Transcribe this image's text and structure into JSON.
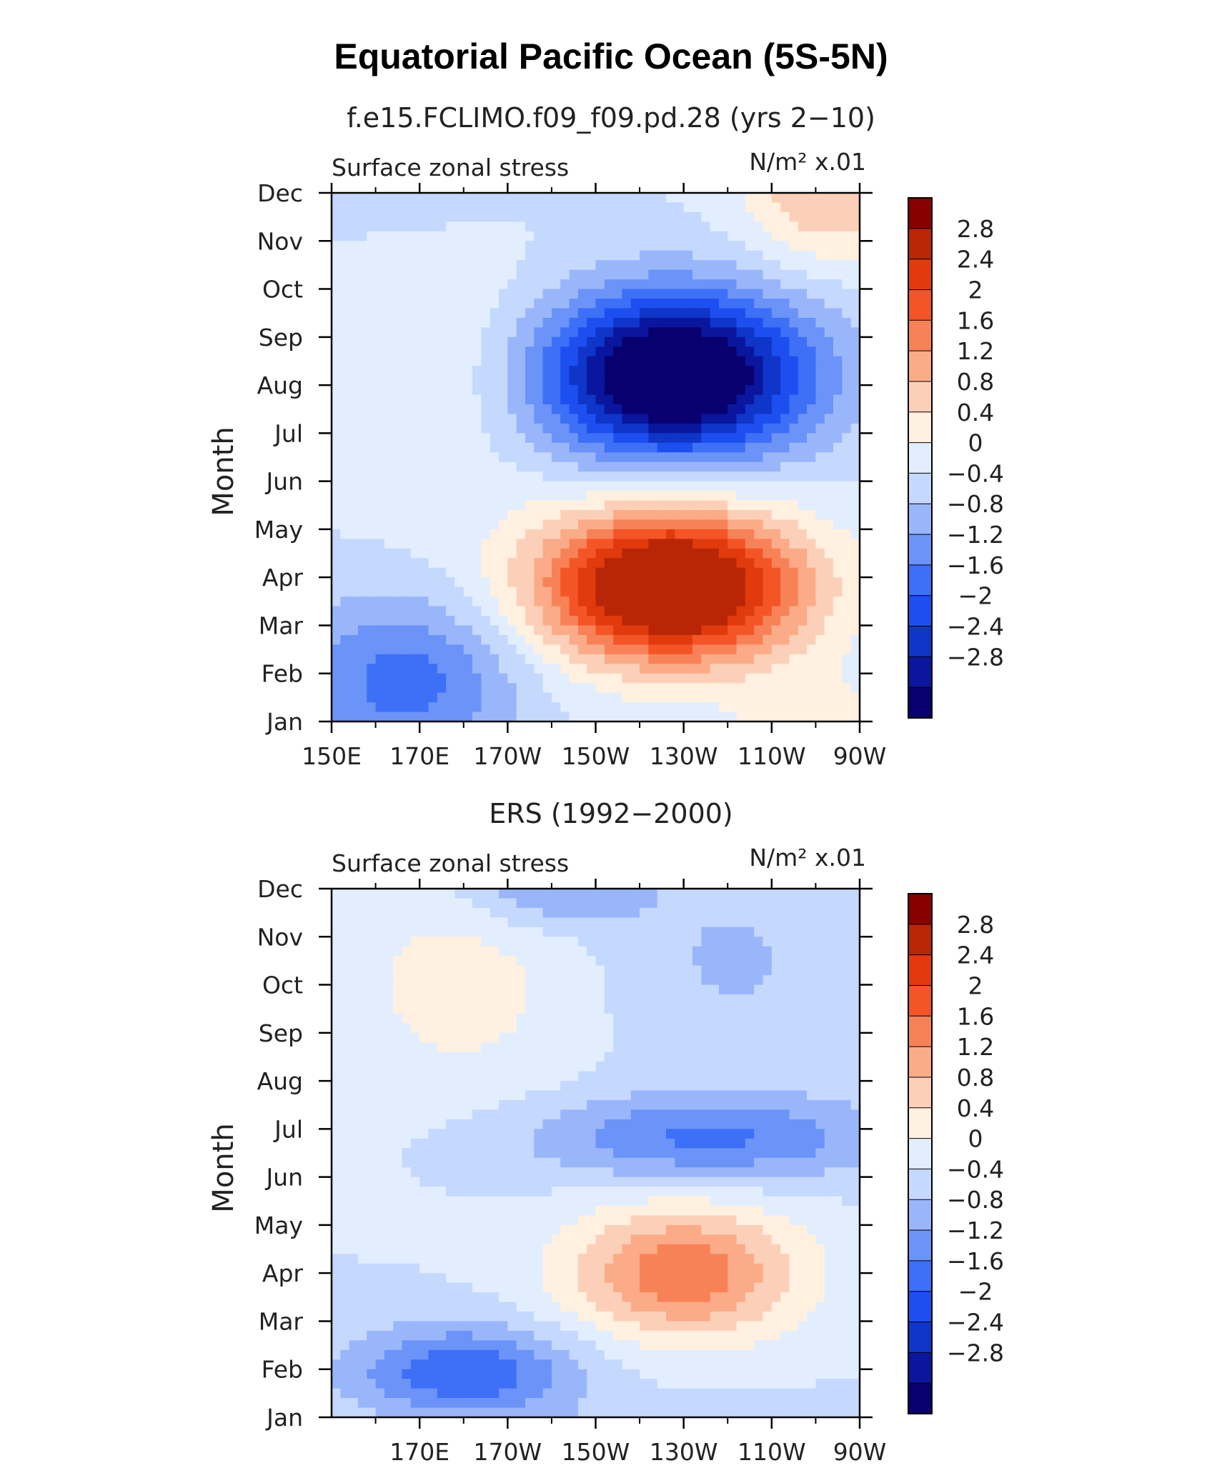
{
  "title": "Equatorial Pacific Ocean (5S-5N)",
  "colors": [
    "#08006f",
    "#0a169d",
    "#0f35c9",
    "#1d4ff0",
    "#3d6ff7",
    "#6b93f8",
    "#9ab6fb",
    "#c5d8fd",
    "#e2eefe",
    "#fff0e0",
    "#fcd0b8",
    "#fbab88",
    "#f88257",
    "#f45527",
    "#e03a0d",
    "#b92607",
    "#8a0000"
  ],
  "chart_data": [
    {
      "type": "heatmap",
      "subtitle": "f.e15.FCLIMO.f09_f09.pd.28 (yrs 2−10)",
      "left_label": "Surface zonal stress",
      "right_label": "N/m² x.01",
      "ylabel": "Month",
      "x_tick_labels": [
        "150E",
        "170E",
        "170W",
        "150W",
        "130W",
        "110W",
        "90W"
      ],
      "y_tick_labels": [
        "Jan",
        "Feb",
        "Mar",
        "Apr",
        "May",
        "Jun",
        "Jul",
        "Aug",
        "Sep",
        "Oct",
        "Nov",
        "Dec"
      ],
      "colorbar_labels": [
        "2.8",
        "2.4",
        "2",
        "1.6",
        "1.2",
        "0.8",
        "0.4",
        "0",
        "−0.4",
        "−0.8",
        "−1.2",
        "−1.6",
        "−2",
        "−2.4",
        "−2.8"
      ],
      "levels": [
        -2.8,
        -2.4,
        -2,
        -1.6,
        -1.2,
        -0.8,
        -0.4,
        0,
        0.4,
        0.8,
        1.2,
        1.6,
        2,
        2.4,
        2.8
      ]
    },
    {
      "type": "heatmap",
      "subtitle": "ERS (1992−2000)",
      "left_label": "Surface zonal stress",
      "right_label": "N/m² x.01",
      "ylabel": "Month",
      "x_tick_labels": [
        "170E",
        "170W",
        "150W",
        "130W",
        "110W",
        "90W"
      ],
      "y_tick_labels": [
        "Jan",
        "Feb",
        "Mar",
        "Apr",
        "May",
        "Jun",
        "Jul",
        "Aug",
        "Sep",
        "Oct",
        "Nov",
        "Dec"
      ],
      "colorbar_labels": [
        "2.8",
        "2.4",
        "2",
        "1.6",
        "1.2",
        "0.8",
        "0.4",
        "0",
        "−0.4",
        "−0.8",
        "−1.2",
        "−1.6",
        "−2",
        "−2.4",
        "−2.8"
      ],
      "levels": [
        -2.8,
        -2.4,
        -2,
        -1.6,
        -1.2,
        -0.8,
        -0.4,
        0,
        0.4,
        0.8,
        1.2,
        1.6,
        2,
        2.4,
        2.8
      ]
    }
  ]
}
